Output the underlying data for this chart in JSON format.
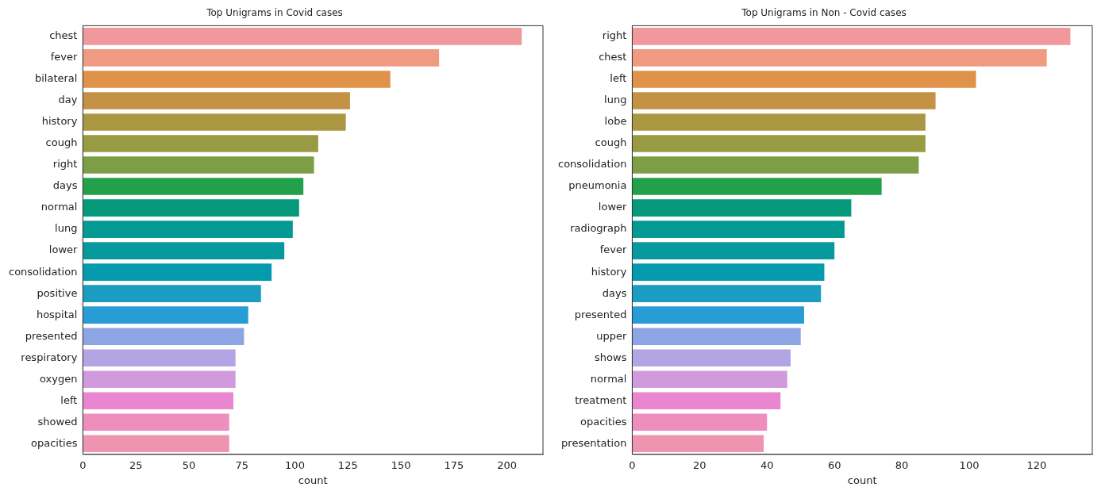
{
  "chart_data": [
    {
      "type": "bar",
      "orientation": "horizontal",
      "title": "Top Unigrams in Covid cases",
      "xlabel": "count",
      "categories": [
        "chest",
        "fever",
        "bilateral",
        "day",
        "history",
        "cough",
        "right",
        "days",
        "normal",
        "lung",
        "lower",
        "consolidation",
        "positive",
        "hospital",
        "presented",
        "respiratory",
        "oxygen",
        "left",
        "showed",
        "opacities"
      ],
      "values": [
        207,
        168,
        145,
        126,
        124,
        111,
        109,
        104,
        102,
        99,
        95,
        89,
        84,
        78,
        76,
        72,
        72,
        71,
        69,
        69
      ],
      "colors": [
        "#f0989c",
        "#f09a82",
        "#e0924a",
        "#c49244",
        "#ab9742",
        "#999b42",
        "#7c9e44",
        "#22a04a",
        "#049a7a",
        "#039a93",
        "#069a9f",
        "#039aae",
        "#1b9cc1",
        "#289cd4",
        "#8ea5e3",
        "#b3a4e4",
        "#d09bdc",
        "#ea86d0",
        "#ee8ebd",
        "#ee94b0"
      ],
      "xlim": [
        0,
        217
      ],
      "xticks": [
        0,
        25,
        50,
        75,
        100,
        125,
        150,
        175,
        200
      ]
    },
    {
      "type": "bar",
      "orientation": "horizontal",
      "title": "Top Unigrams in Non - Covid cases",
      "xlabel": "count",
      "categories": [
        "right",
        "chest",
        "left",
        "lung",
        "lobe",
        "cough",
        "consolidation",
        "pneumonia",
        "lower",
        "radiograph",
        "fever",
        "history",
        "days",
        "presented",
        "upper",
        "shows",
        "normal",
        "treatment",
        "opacities",
        "presentation"
      ],
      "values": [
        130,
        123,
        102,
        90,
        87,
        87,
        85,
        74,
        65,
        63,
        60,
        57,
        56,
        51,
        50,
        47,
        46,
        44,
        40,
        39
      ],
      "colors": [
        "#f0989c",
        "#f09a82",
        "#e0924a",
        "#c49244",
        "#ab9742",
        "#999b42",
        "#7c9e44",
        "#22a04a",
        "#049a7a",
        "#039a93",
        "#069a9f",
        "#039aae",
        "#1b9cc1",
        "#289cd4",
        "#8ea5e3",
        "#b3a4e4",
        "#d09bdc",
        "#ea86d0",
        "#ee8ebd",
        "#ee94b0"
      ],
      "xlim": [
        0,
        136.5
      ],
      "xticks": [
        0,
        20,
        40,
        60,
        80,
        100,
        120
      ]
    }
  ]
}
